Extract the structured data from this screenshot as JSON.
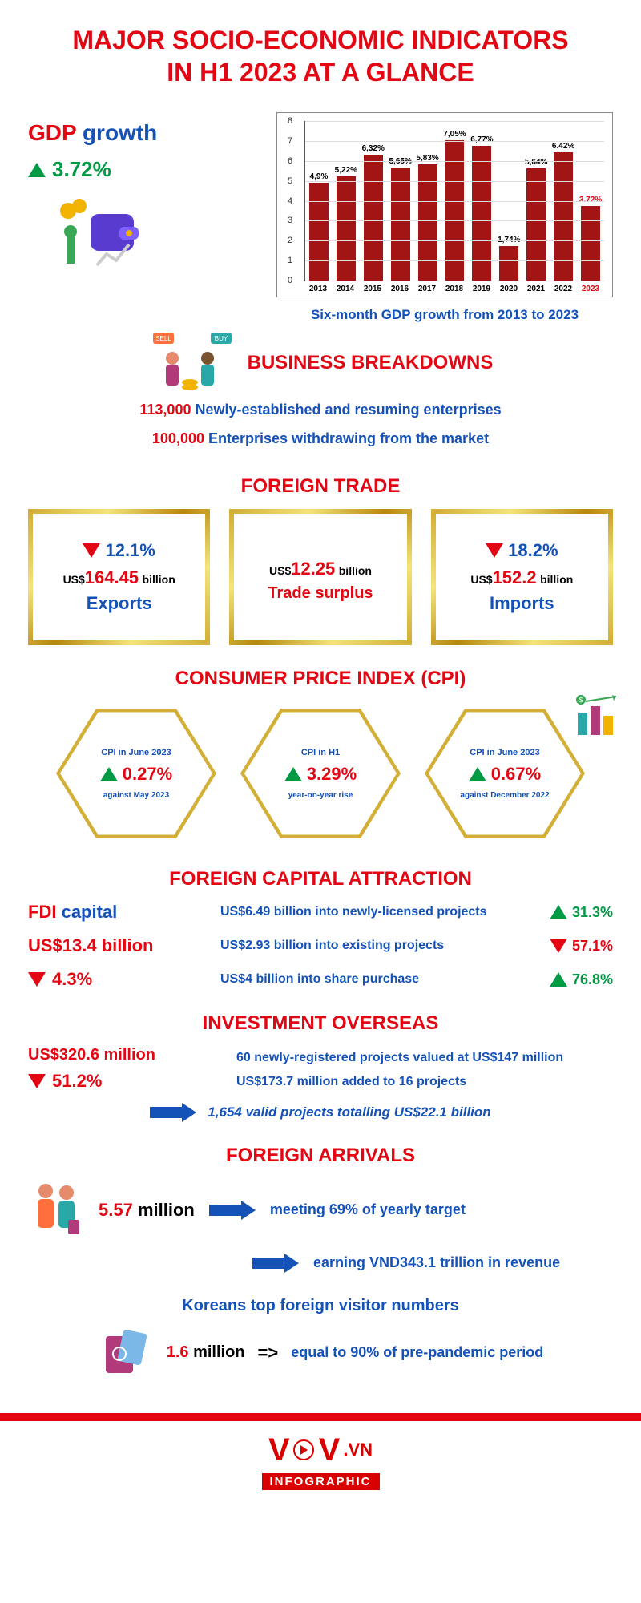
{
  "colors": {
    "red": "#e30613",
    "dark_red": "#a31515",
    "blue": "#1452b8",
    "green": "#009944",
    "black": "#000000",
    "gold": "#d4af37",
    "grid": "#dddddd",
    "bg": "#ffffff"
  },
  "title": {
    "line1": "MAJOR SOCIO-ECONOMIC INDICATORS",
    "line2": "IN H1 2023 AT A GLANCE",
    "fontsize": 32,
    "color": "#e30613"
  },
  "gdp": {
    "label_gdp": "GDP",
    "label_growth": "growth",
    "direction": "up",
    "value": "3.72%",
    "color_gdp": "#e30613",
    "color_growth": "#1452b8",
    "value_color": "#009944"
  },
  "chart": {
    "type": "bar",
    "caption": "Six-month GDP growth from 2013 to 2023",
    "caption_color": "#1452b8",
    "bar_color": "#a31515",
    "highlight_label_color": "#e30613",
    "year_label_color": "#000000",
    "ylim": [
      0,
      8
    ],
    "ytick_step": 1,
    "years": [
      "2013",
      "2014",
      "2015",
      "2016",
      "2017",
      "2018",
      "2019",
      "2020",
      "2021",
      "2022",
      "2023"
    ],
    "values": [
      4.9,
      5.22,
      6.32,
      5.65,
      5.83,
      7.05,
      6.77,
      1.74,
      5.64,
      6.42,
      3.72
    ],
    "value_labels": [
      "4,9%",
      "5,22%",
      "6,32%",
      "5,65%",
      "5,83%",
      "7,05%",
      "6,77%",
      "1,74%",
      "5,64%",
      "6.42%",
      "3.72%"
    ],
    "last_two_bold_years": [
      9,
      10
    ]
  },
  "business": {
    "title": "BUSINESS BREAKDOWNS",
    "title_color": "#e30613",
    "line1_num": "113,000",
    "line1_text": "Newly-established and resuming enterprises",
    "line2_num": "100,000",
    "line2_text": "Enterprises withdrawing from the market",
    "num_color": "#e30613",
    "text_color": "#1452b8"
  },
  "foreign_trade": {
    "title": "FOREIGN TRADE",
    "title_color": "#e30613",
    "exports": {
      "direction": "down",
      "change": "12.1%",
      "change_color": "#1452b8",
      "prefix": "US$",
      "amount": "164.45",
      "unit": "billion",
      "amount_color": "#e30613",
      "label": "Exports",
      "label_color": "#1452b8"
    },
    "surplus": {
      "prefix": "US$",
      "amount": "12.25",
      "unit": "billion",
      "amount_color": "#e30613",
      "label": "Trade surplus",
      "label_color": "#e30613"
    },
    "imports": {
      "direction": "down",
      "change": "18.2%",
      "change_color": "#1452b8",
      "prefix": "US$",
      "amount": "152.2",
      "unit": "billion",
      "amount_color": "#e30613",
      "label": "Imports",
      "label_color": "#1452b8"
    }
  },
  "cpi": {
    "title": "CONSUMER PRICE INDEX (CPI)",
    "title_color": "#e30613",
    "hex_border_color": "#d4af37",
    "items": [
      {
        "top": "CPI in June 2023",
        "direction": "up",
        "value": "0.27%",
        "sub": "against May 2023"
      },
      {
        "top": "CPI in H1",
        "direction": "up",
        "value": "3.29%",
        "sub": "year-on-year rise"
      },
      {
        "top": "CPI in June 2023",
        "direction": "up",
        "value": "0.67%",
        "sub": "against December 2022"
      }
    ],
    "top_color": "#1452b8",
    "value_color": "#e30613",
    "sub_color": "#1452b8"
  },
  "fdi": {
    "title": "FOREIGN CAPITAL ATTRACTION",
    "title_color": "#e30613",
    "left": {
      "label_fdi": "FDI",
      "label_capital": "capital",
      "fdi_color": "#e30613",
      "capital_color": "#1452b8",
      "amount": "US$13.4 billion",
      "amount_color": "#e30613",
      "direction": "down",
      "change": "4.3%",
      "change_color": "#e30613"
    },
    "rows": [
      {
        "text": "US$6.49 billion into newly-licensed projects",
        "direction": "up",
        "change": "31.3%"
      },
      {
        "text": "US$2.93 billion into existing projects",
        "direction": "down",
        "change": "57.1%"
      },
      {
        "text": "US$4 billion into share purchase",
        "direction": "up",
        "change": "76.8%"
      }
    ],
    "text_color": "#1452b8"
  },
  "invest_overseas": {
    "title": "INVESTMENT OVERSEAS",
    "title_color": "#e30613",
    "amount": "US$320.6 million",
    "amount_color": "#e30613",
    "direction": "down",
    "change": "51.2%",
    "change_color": "#e30613",
    "lines": [
      "60 newly-registered projects valued at US$147 million",
      "US$173.7 million added to 16 projects"
    ],
    "lines_color": "#1452b8",
    "summary": "1,654 valid projects totalling US$22.1 billion",
    "summary_color": "#1452b8",
    "arrow_color": "#1452b8"
  },
  "foreign_arrivals": {
    "title": "FOREIGN ARRIVALS",
    "title_color": "#e30613",
    "num": "5.57",
    "unit": "million",
    "num_color": "#e30613",
    "line1": "meeting 69% of yearly target",
    "line2": "earning VND343.1 trillion in revenue",
    "text_color": "#1452b8",
    "arrow_color": "#1452b8"
  },
  "koreans": {
    "title": "Koreans top foreign visitor numbers",
    "title_color": "#1452b8",
    "num": "1.6",
    "unit": "million",
    "num_color": "#e30613",
    "arrow": "=>",
    "text": "equal to 90% of pre-pandemic period",
    "text_color": "#1452b8"
  },
  "footer": {
    "band_color": "#e30613",
    "brand": "V V",
    "vn": ".VN",
    "label": "INFOGRAPHIC"
  }
}
